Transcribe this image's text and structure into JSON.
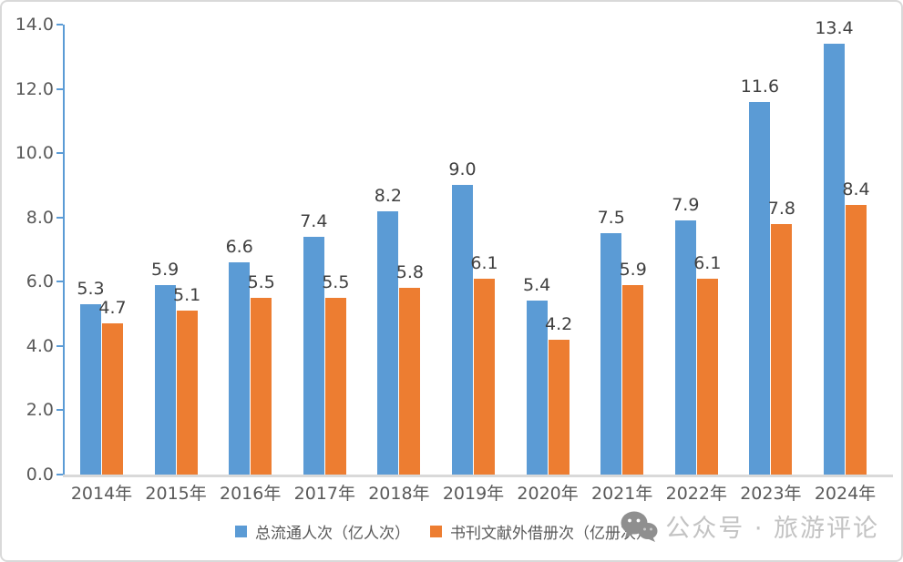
{
  "watermark": {
    "icon": "wechat-icon",
    "text": "公众号 · 旅游评论"
  },
  "chart_data": {
    "type": "bar",
    "title": "",
    "xlabel": "",
    "ylabel": "",
    "categories": [
      "2014年",
      "2015年",
      "2016年",
      "2017年",
      "2018年",
      "2019年",
      "2020年",
      "2021年",
      "2022年",
      "2023年",
      "2024年"
    ],
    "series": [
      {
        "name": "总流通人次（亿人次）",
        "color": "#5b9bd5",
        "values": [
          5.3,
          5.9,
          6.6,
          7.4,
          8.2,
          9.0,
          5.4,
          7.5,
          7.9,
          11.6,
          13.4
        ]
      },
      {
        "name": "书刊文献外借册次（亿册次）",
        "color": "#ed7d31",
        "values": [
          4.7,
          5.1,
          5.5,
          5.5,
          5.8,
          6.1,
          4.2,
          5.9,
          6.1,
          7.8,
          8.4
        ]
      }
    ],
    "ylim": [
      0,
      14
    ],
    "ytick_step": 2,
    "ytick_decimals": 1,
    "value_labels": true,
    "value_label_decimals": 1,
    "grid": false,
    "legend_position": "bottom",
    "colors": {
      "axis": "#5b9bd5",
      "baseline": "#d9d9d9",
      "tick_label": "#595959",
      "value_label": "#404040",
      "watermark_text": "#c3c3c3",
      "watermark_icon": "#8f8f8f"
    }
  }
}
